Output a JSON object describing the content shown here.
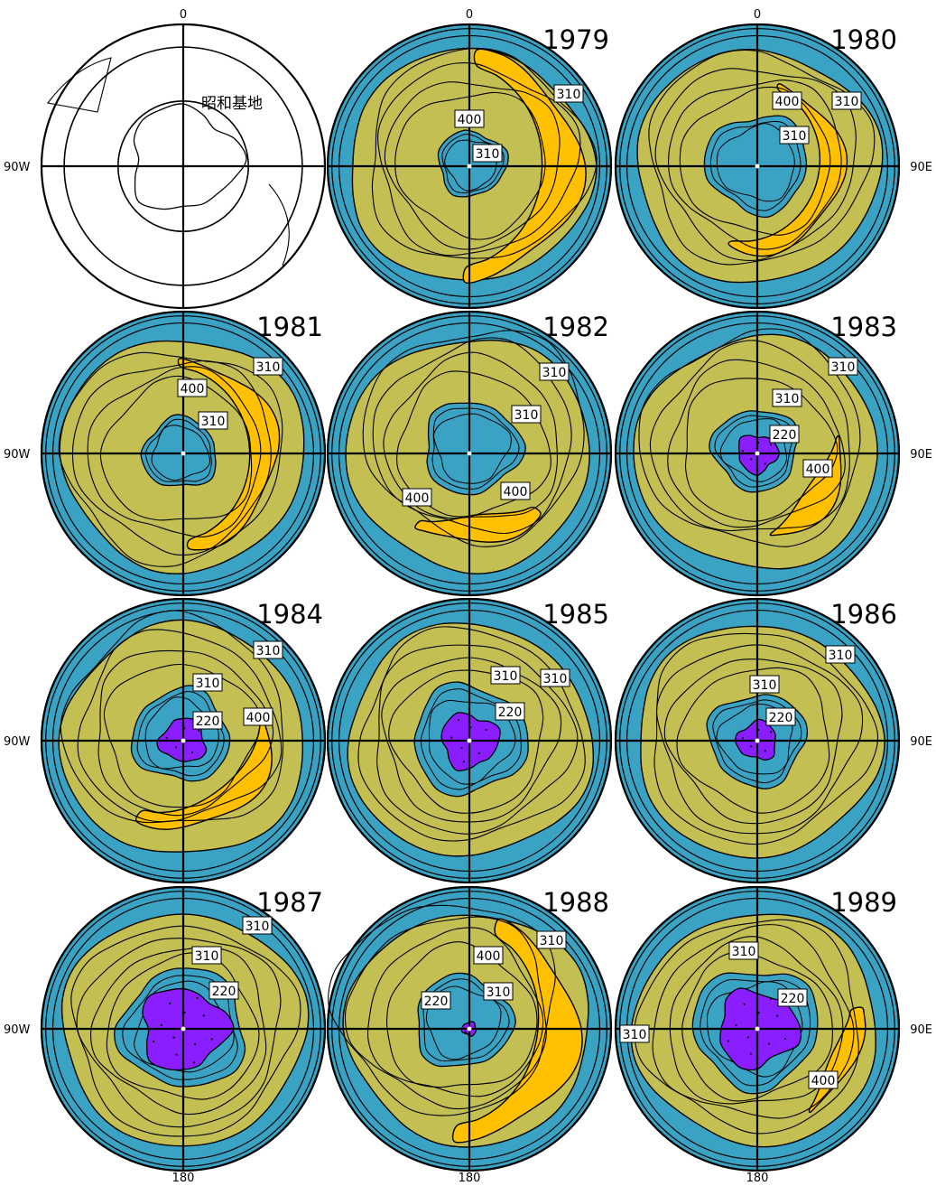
{
  "colors": {
    "ocean": "#3aa3c4",
    "mid": "#c3bf52",
    "high": "#ffc000",
    "hole": "#8a1eff",
    "line": "#000000",
    "label_bg": "#ffffff"
  },
  "compass": {
    "top": "0",
    "left": "90W",
    "right": "90E",
    "bottom": "180"
  },
  "reference_map": {
    "station_label": "昭和基地"
  },
  "panels": [
    {
      "year": "",
      "type": "reference"
    },
    {
      "year": "1979",
      "type": "ozone",
      "labels": [
        {
          "text": "310"
        },
        {
          "text": "400"
        },
        {
          "text": "310"
        }
      ]
    },
    {
      "year": "1980",
      "type": "ozone",
      "labels": [
        {
          "text": "400"
        },
        {
          "text": "310"
        },
        {
          "text": "310"
        }
      ]
    },
    {
      "year": "1981",
      "type": "ozone",
      "labels": [
        {
          "text": "310"
        },
        {
          "text": "400"
        },
        {
          "text": "310"
        }
      ]
    },
    {
      "year": "1982",
      "type": "ozone",
      "labels": [
        {
          "text": "310"
        },
        {
          "text": "310"
        },
        {
          "text": "400"
        },
        {
          "text": "400"
        }
      ]
    },
    {
      "year": "1983",
      "type": "ozone",
      "labels": [
        {
          "text": "310"
        },
        {
          "text": "310"
        },
        {
          "text": "220"
        },
        {
          "text": "400"
        }
      ]
    },
    {
      "year": "1984",
      "type": "ozone",
      "labels": [
        {
          "text": "310"
        },
        {
          "text": "310"
        },
        {
          "text": "220"
        },
        {
          "text": "400"
        }
      ]
    },
    {
      "year": "1985",
      "type": "ozone",
      "labels": [
        {
          "text": "310"
        },
        {
          "text": "310"
        },
        {
          "text": "220"
        }
      ]
    },
    {
      "year": "1986",
      "type": "ozone",
      "labels": [
        {
          "text": "310"
        },
        {
          "text": "310"
        },
        {
          "text": "220"
        }
      ]
    },
    {
      "year": "1987",
      "type": "ozone",
      "labels": [
        {
          "text": "310"
        },
        {
          "text": "310"
        },
        {
          "text": "220"
        }
      ]
    },
    {
      "year": "1988",
      "type": "ozone",
      "labels": [
        {
          "text": "310"
        },
        {
          "text": "400"
        },
        {
          "text": "310"
        },
        {
          "text": "220"
        }
      ]
    },
    {
      "year": "1989",
      "type": "ozone",
      "labels": [
        {
          "text": "310"
        },
        {
          "text": "220"
        },
        {
          "text": "310"
        },
        {
          "text": "400"
        }
      ]
    }
  ]
}
